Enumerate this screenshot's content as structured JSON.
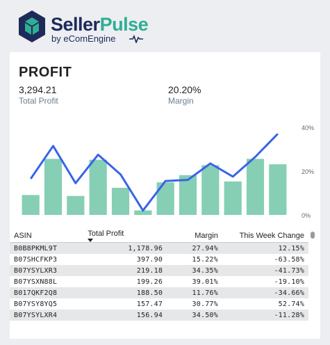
{
  "brand": {
    "name_part1": "Seller",
    "name_part2": "Pulse",
    "tagline": "by eComEngine",
    "colors": {
      "navy": "#1e2a5a",
      "teal": "#2fae93"
    }
  },
  "card": {
    "title": "PROFIT",
    "kpis": [
      {
        "value": "3,294.21",
        "label": "Total Profit"
      },
      {
        "value": "20.20%",
        "label": "Margin"
      }
    ]
  },
  "chart_data": {
    "type": "bar+line",
    "bars": {
      "name": "Total Profit",
      "color": "#86cfb4",
      "values": [
        0.22,
        0.62,
        0.21,
        0.61,
        0.3,
        0.05,
        0.36,
        0.44,
        0.55,
        0.37,
        0.62,
        0.56
      ]
    },
    "line": {
      "name": "Margin",
      "color": "#3a63e8",
      "values": [
        16.5,
        31.5,
        14.5,
        27.5,
        18.5,
        2,
        15.5,
        16,
        23.5,
        17.5,
        26.5,
        37
      ]
    },
    "y_axis_right": {
      "ticks": [
        "40%",
        "20%",
        "0%"
      ],
      "range": [
        0,
        40
      ]
    }
  },
  "table": {
    "columns": [
      "ASIN",
      "Total Profit",
      "Margin",
      "This Week Change"
    ],
    "rows": [
      [
        "B0B8PKML9T",
        "1,178.96",
        "27.94%",
        "12.15%"
      ],
      [
        "B07SHCFKP3",
        "397.90",
        "15.22%",
        "-63.58%"
      ],
      [
        "B07YSYLXR3",
        "219.18",
        "34.35%",
        "-41.73%"
      ],
      [
        "B07YSXN88L",
        "199.26",
        "39.01%",
        "-19.10%"
      ],
      [
        "B017QKF2Q8",
        "188.50",
        "11.76%",
        "-34.66%"
      ],
      [
        "B07YSY8YQ5",
        "157.47",
        "30.77%",
        "52.74%"
      ],
      [
        "B07YSYLXR4",
        "156.94",
        "34.50%",
        "-11.28%"
      ]
    ]
  }
}
